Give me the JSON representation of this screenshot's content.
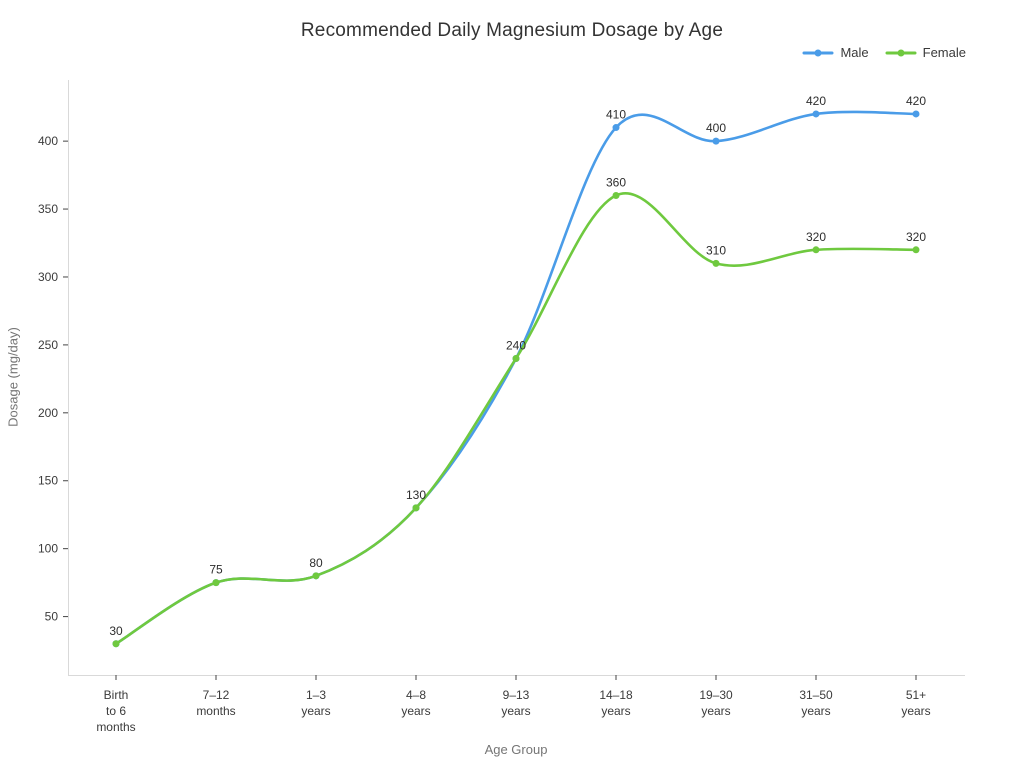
{
  "title": "Recommended Daily Magnesium Dosage by Age",
  "colors": {
    "background": "#FFFFFF",
    "title_text": "#333333",
    "axis_line": "#D9D9D9",
    "tick_mark": "#444444",
    "tick_label": "#3B3B3B",
    "axis_title": "#757575",
    "data_label": "#2E2E2E",
    "male_series": "#4A9CE8",
    "female_series": "#6FC93F"
  },
  "chart_data": {
    "type": "line",
    "title": "Recommended Daily Magnesium Dosage by Age",
    "xlabel": "Age Group",
    "ylabel": "Dosage (mg/day)",
    "categories": [
      [
        "Birth",
        "to 6",
        "months"
      ],
      [
        "7–12",
        "months"
      ],
      [
        "1–3",
        "years"
      ],
      [
        "4–8",
        "years"
      ],
      [
        "9–13",
        "years"
      ],
      [
        "14–18",
        "years"
      ],
      [
        "19–30",
        "years"
      ],
      [
        "31–50",
        "years"
      ],
      [
        "51+",
        "years"
      ]
    ],
    "series": [
      {
        "name": "Male",
        "color": "#4A9CE8",
        "values": [
          30,
          75,
          80,
          130,
          240,
          410,
          400,
          420,
          420
        ]
      },
      {
        "name": "Female",
        "color": "#6FC93F",
        "values": [
          30,
          75,
          80,
          130,
          240,
          360,
          310,
          320,
          320
        ]
      }
    ],
    "yticks": [
      50,
      100,
      150,
      200,
      250,
      300,
      350,
      400
    ],
    "ylim": [
      7,
      445
    ],
    "line_shape": "spline",
    "markers": true,
    "data_labels": true,
    "legend_position": "top-right",
    "grid": false
  }
}
